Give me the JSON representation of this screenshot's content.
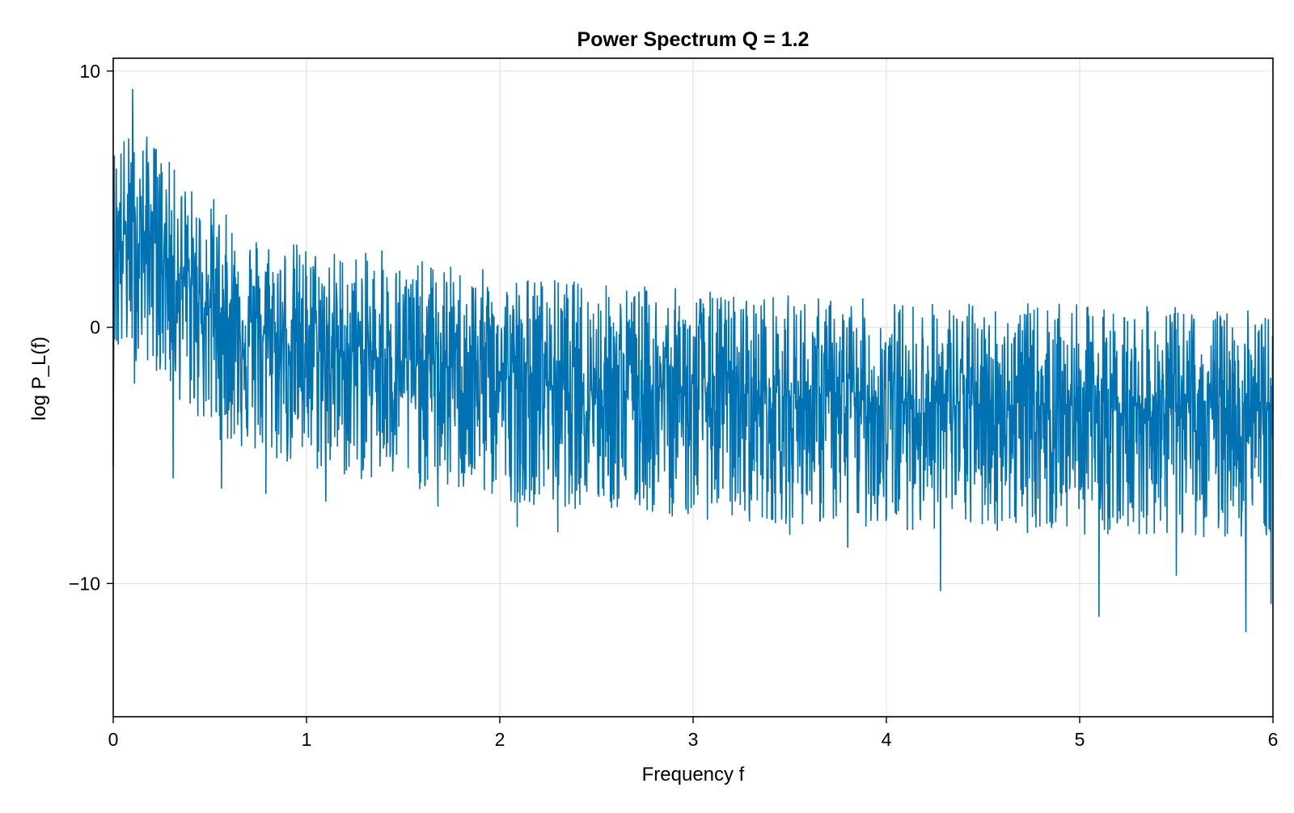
{
  "chart_data": {
    "type": "line",
    "title": "Power Spectrum Q = 1.2",
    "xlabel": "Frequency f",
    "ylabel": "log P_L(f)",
    "xlim": [
      0,
      6
    ],
    "ylim": [
      -15.2,
      10.5
    ],
    "x_ticks": [
      0,
      1,
      2,
      3,
      4,
      5,
      6
    ],
    "x_tick_labels": [
      "0",
      "1",
      "2",
      "3",
      "4",
      "5",
      "6"
    ],
    "y_ticks": [
      10,
      0,
      -10
    ],
    "y_tick_labels": [
      "10",
      "0",
      "−10"
    ],
    "grid": true,
    "legend": "none",
    "series": [
      {
        "color": "#0072b2",
        "trend": {
          "f": [
            0,
            0.05,
            0.1,
            0.2,
            0.3,
            0.5,
            0.75,
            1.0,
            1.5,
            2.0,
            2.5,
            3.0,
            3.5,
            4.0,
            4.5,
            5.0,
            5.5,
            6.0
          ],
          "mean": [
            3.4,
            3.6,
            3.7,
            3.5,
            2.4,
            0.8,
            -0.2,
            -0.7,
            -1.3,
            -1.8,
            -2.2,
            -2.5,
            -2.7,
            -2.9,
            -3.0,
            -3.1,
            -3.2,
            -3.3
          ]
        },
        "spread": {
          "upper": 4.0,
          "lower": -5.0
        },
        "peaks": [
          {
            "f": 0.0,
            "y": -5.4
          },
          {
            "f": 0.1,
            "y": 9.3
          },
          {
            "f": 0.11,
            "y": -2.2
          },
          {
            "f": 0.21,
            "y": 7.0
          },
          {
            "f": 0.31,
            "y": 7.9
          },
          {
            "f": 0.31,
            "y": -5.9
          },
          {
            "f": 0.52,
            "y": 5.0
          },
          {
            "f": 0.56,
            "y": -6.3
          },
          {
            "f": 0.79,
            "y": -6.5
          },
          {
            "f": 1.1,
            "y": -6.8
          },
          {
            "f": 1.39,
            "y": 3.0
          },
          {
            "f": 1.68,
            "y": -7.0
          },
          {
            "f": 2.09,
            "y": -7.8
          },
          {
            "f": 2.3,
            "y": -8.0
          },
          {
            "f": 3.5,
            "y": -8.1
          },
          {
            "f": 3.8,
            "y": -8.6
          },
          {
            "f": 4.28,
            "y": -10.3
          },
          {
            "f": 5.1,
            "y": -11.3
          },
          {
            "f": 5.12,
            "y": 0.4
          },
          {
            "f": 5.5,
            "y": -9.7
          },
          {
            "f": 5.86,
            "y": -11.9
          },
          {
            "f": 5.99,
            "y": -10.8
          }
        ]
      }
    ]
  }
}
